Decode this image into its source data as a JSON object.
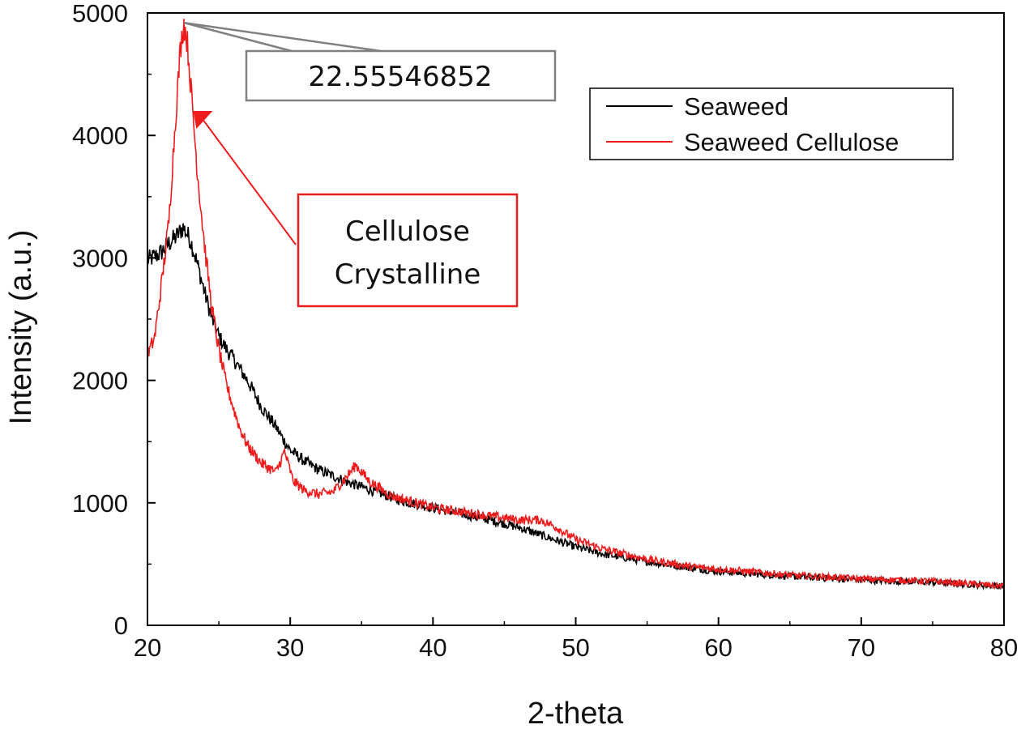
{
  "chart_data": {
    "type": "line",
    "title": "",
    "xlabel": "2-theta",
    "ylabel": "Intensity (a.u.)",
    "xlim": [
      20,
      80
    ],
    "ylim": [
      0,
      5000
    ],
    "x_ticks": [
      20,
      30,
      40,
      50,
      60,
      70,
      80
    ],
    "y_ticks": [
      0,
      1000,
      2000,
      3000,
      4000,
      5000
    ],
    "grid": false,
    "legend_position": "top-right",
    "series": [
      {
        "name": "Seaweed",
        "color": "#000000",
        "points": [
          [
            20,
            2980
          ],
          [
            20.5,
            3010
          ],
          [
            21,
            3050
          ],
          [
            21.5,
            3120
          ],
          [
            22,
            3170
          ],
          [
            22.5,
            3250
          ],
          [
            23,
            3150
          ],
          [
            23.5,
            2950
          ],
          [
            24,
            2720
          ],
          [
            24.5,
            2510
          ],
          [
            25,
            2360
          ],
          [
            25.5,
            2260
          ],
          [
            26,
            2180
          ],
          [
            27,
            2000
          ],
          [
            28,
            1780
          ],
          [
            29,
            1620
          ],
          [
            29.5,
            1520
          ],
          [
            30,
            1430
          ],
          [
            31,
            1340
          ],
          [
            32,
            1270
          ],
          [
            33,
            1220
          ],
          [
            34,
            1170
          ],
          [
            35,
            1130
          ],
          [
            36,
            1090
          ],
          [
            37,
            1050
          ],
          [
            38,
            1010
          ],
          [
            40,
            960
          ],
          [
            42,
            910
          ],
          [
            44,
            860
          ],
          [
            46,
            800
          ],
          [
            48,
            720
          ],
          [
            50,
            640
          ],
          [
            52,
            580
          ],
          [
            55,
            520
          ],
          [
            58,
            470
          ],
          [
            60,
            440
          ],
          [
            65,
            400
          ],
          [
            70,
            370
          ],
          [
            75,
            350
          ],
          [
            80,
            320
          ]
        ]
      },
      {
        "name": "Seaweed Cellulose",
        "color": "#ee1c1c",
        "points": [
          [
            20,
            2200
          ],
          [
            20.5,
            2350
          ],
          [
            21,
            2800
          ],
          [
            21.5,
            3300
          ],
          [
            22,
            4200
          ],
          [
            22.3,
            4700
          ],
          [
            22.55,
            4920
          ],
          [
            22.8,
            4750
          ],
          [
            23.1,
            4300
          ],
          [
            23.5,
            3700
          ],
          [
            24,
            3100
          ],
          [
            24.5,
            2600
          ],
          [
            25,
            2250
          ],
          [
            25.5,
            1980
          ],
          [
            26,
            1780
          ],
          [
            26.5,
            1600
          ],
          [
            27,
            1470
          ],
          [
            28,
            1320
          ],
          [
            29,
            1250
          ],
          [
            29.6,
            1420
          ],
          [
            30.2,
            1180
          ],
          [
            31,
            1100
          ],
          [
            32,
            1070
          ],
          [
            33,
            1090
          ],
          [
            34,
            1220
          ],
          [
            34.6,
            1310
          ],
          [
            35.5,
            1180
          ],
          [
            37,
            1060
          ],
          [
            40,
            960
          ],
          [
            43,
            910
          ],
          [
            46,
            860
          ],
          [
            47.5,
            860
          ],
          [
            48.5,
            810
          ],
          [
            50,
            700
          ],
          [
            52,
            620
          ],
          [
            55,
            540
          ],
          [
            58,
            480
          ],
          [
            60,
            460
          ],
          [
            65,
            410
          ],
          [
            70,
            380
          ],
          [
            75,
            360
          ],
          [
            80,
            320
          ]
        ]
      }
    ],
    "annotations": [
      {
        "name": "peak-label",
        "text": "22.55546852",
        "target_x": 22.55,
        "target_y": 4920,
        "color": "#808080"
      },
      {
        "name": "cellulose-crystalline-label",
        "text_lines": [
          "Cellulose",
          "Crystalline"
        ],
        "target_x": 23.2,
        "target_y": 4200,
        "color": "#ee1c1c"
      }
    ]
  }
}
